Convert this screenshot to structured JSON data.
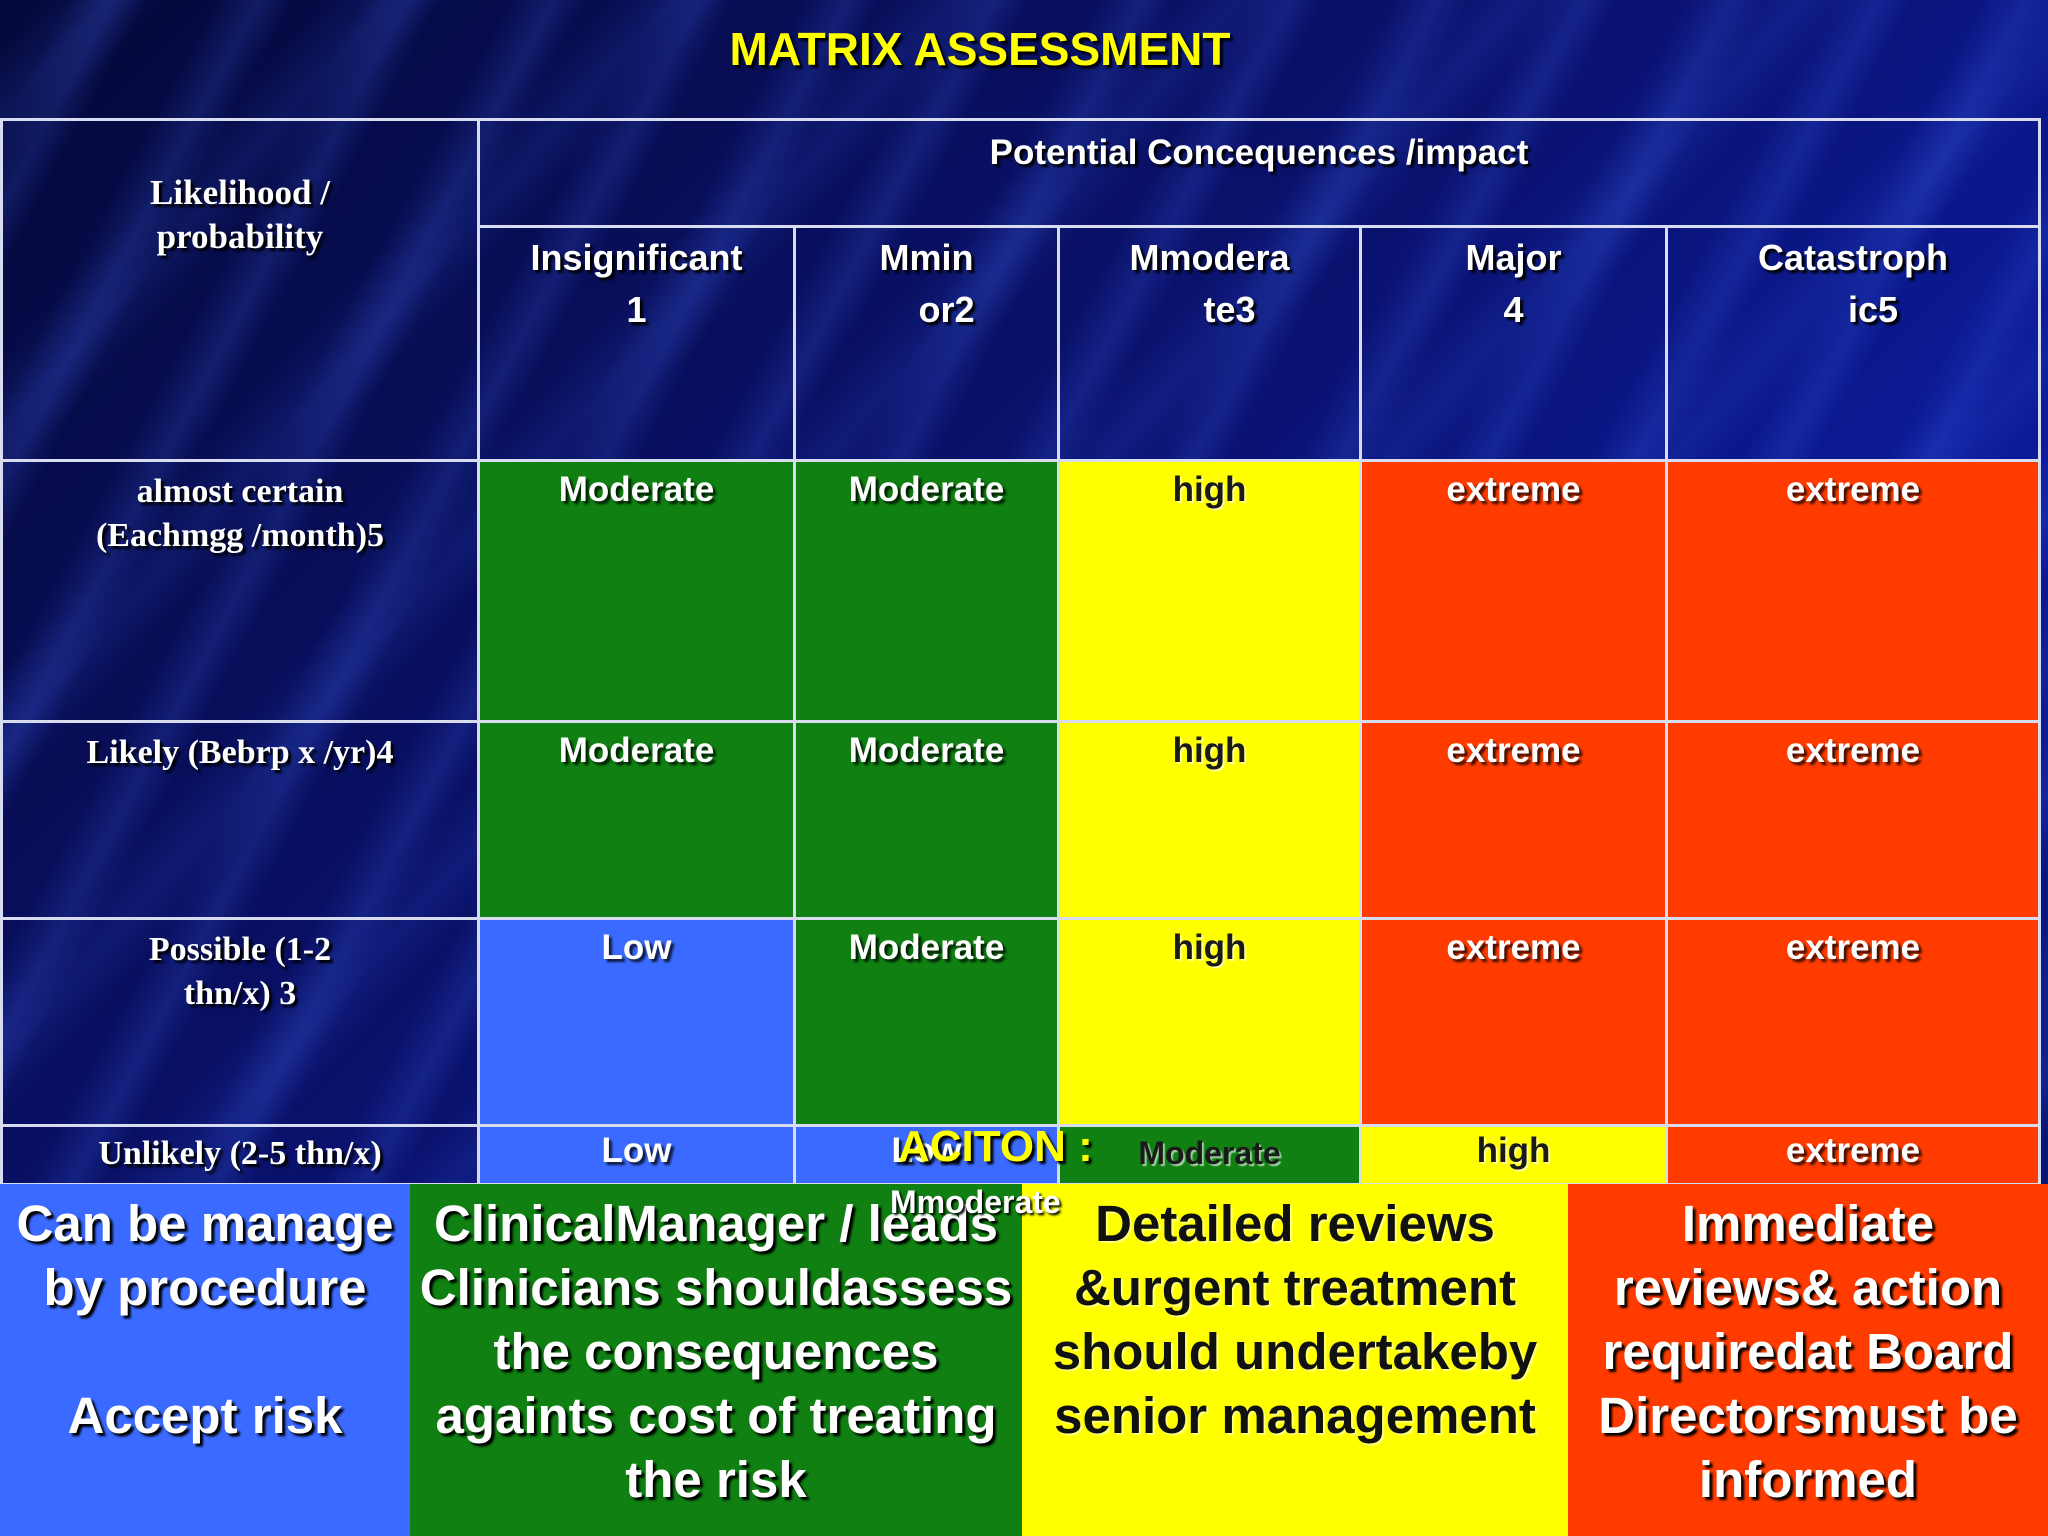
{
  "title": "MATRIX ASSESSMENT",
  "header": {
    "likelihood_label": "Likelihood / probability",
    "consequence_label": "Potential Concequences /impact",
    "columns": [
      {
        "name": "Insignificant",
        "num": "1"
      },
      {
        "name": "Mmin",
        "num": "or2"
      },
      {
        "name": "Mmodera",
        "num": "te3"
      },
      {
        "name": "Major",
        "num": "4"
      },
      {
        "name": "Catastroph",
        "num": "ic5"
      }
    ]
  },
  "rows": [
    {
      "label": "almost certain (Eachmgg /month)5",
      "cells": [
        "Moderate",
        "Moderate",
        "high",
        "extreme",
        "extreme"
      ]
    },
    {
      "label": "Likely (Bebrp x /yr)4",
      "cells": [
        "Moderate",
        "Moderate",
        "high",
        "extreme",
        "extreme"
      ]
    },
    {
      "label": "Possible (1-2 thn/x) 3",
      "cells": [
        "Low",
        "Moderate",
        "high",
        "extreme",
        "extreme"
      ]
    },
    {
      "label": "Unlikely (2-5 thn/x)",
      "cells": [
        "Low",
        "Low",
        "Moderate",
        "high",
        "extreme"
      ]
    }
  ],
  "action": {
    "label": "ACITON :",
    "sub": "Mmoderate",
    "boxes": [
      "Can be manage by procedure\n\nAccept risk",
      "ClinicalManager / leads Clinicians shouldassess the consequences againts cost of treating the risk",
      "Detailed reviews &urgent treatment should undertakeby senior management",
      "Immediate reviews& action requiredat Board Directorsmust be informed"
    ]
  },
  "colors": {
    "low": "#3a6aff",
    "moderate": "#0f8011",
    "high": "#ffff00",
    "extreme": "#ff3b00",
    "background": "#060a4a",
    "title": "#ffff00"
  }
}
